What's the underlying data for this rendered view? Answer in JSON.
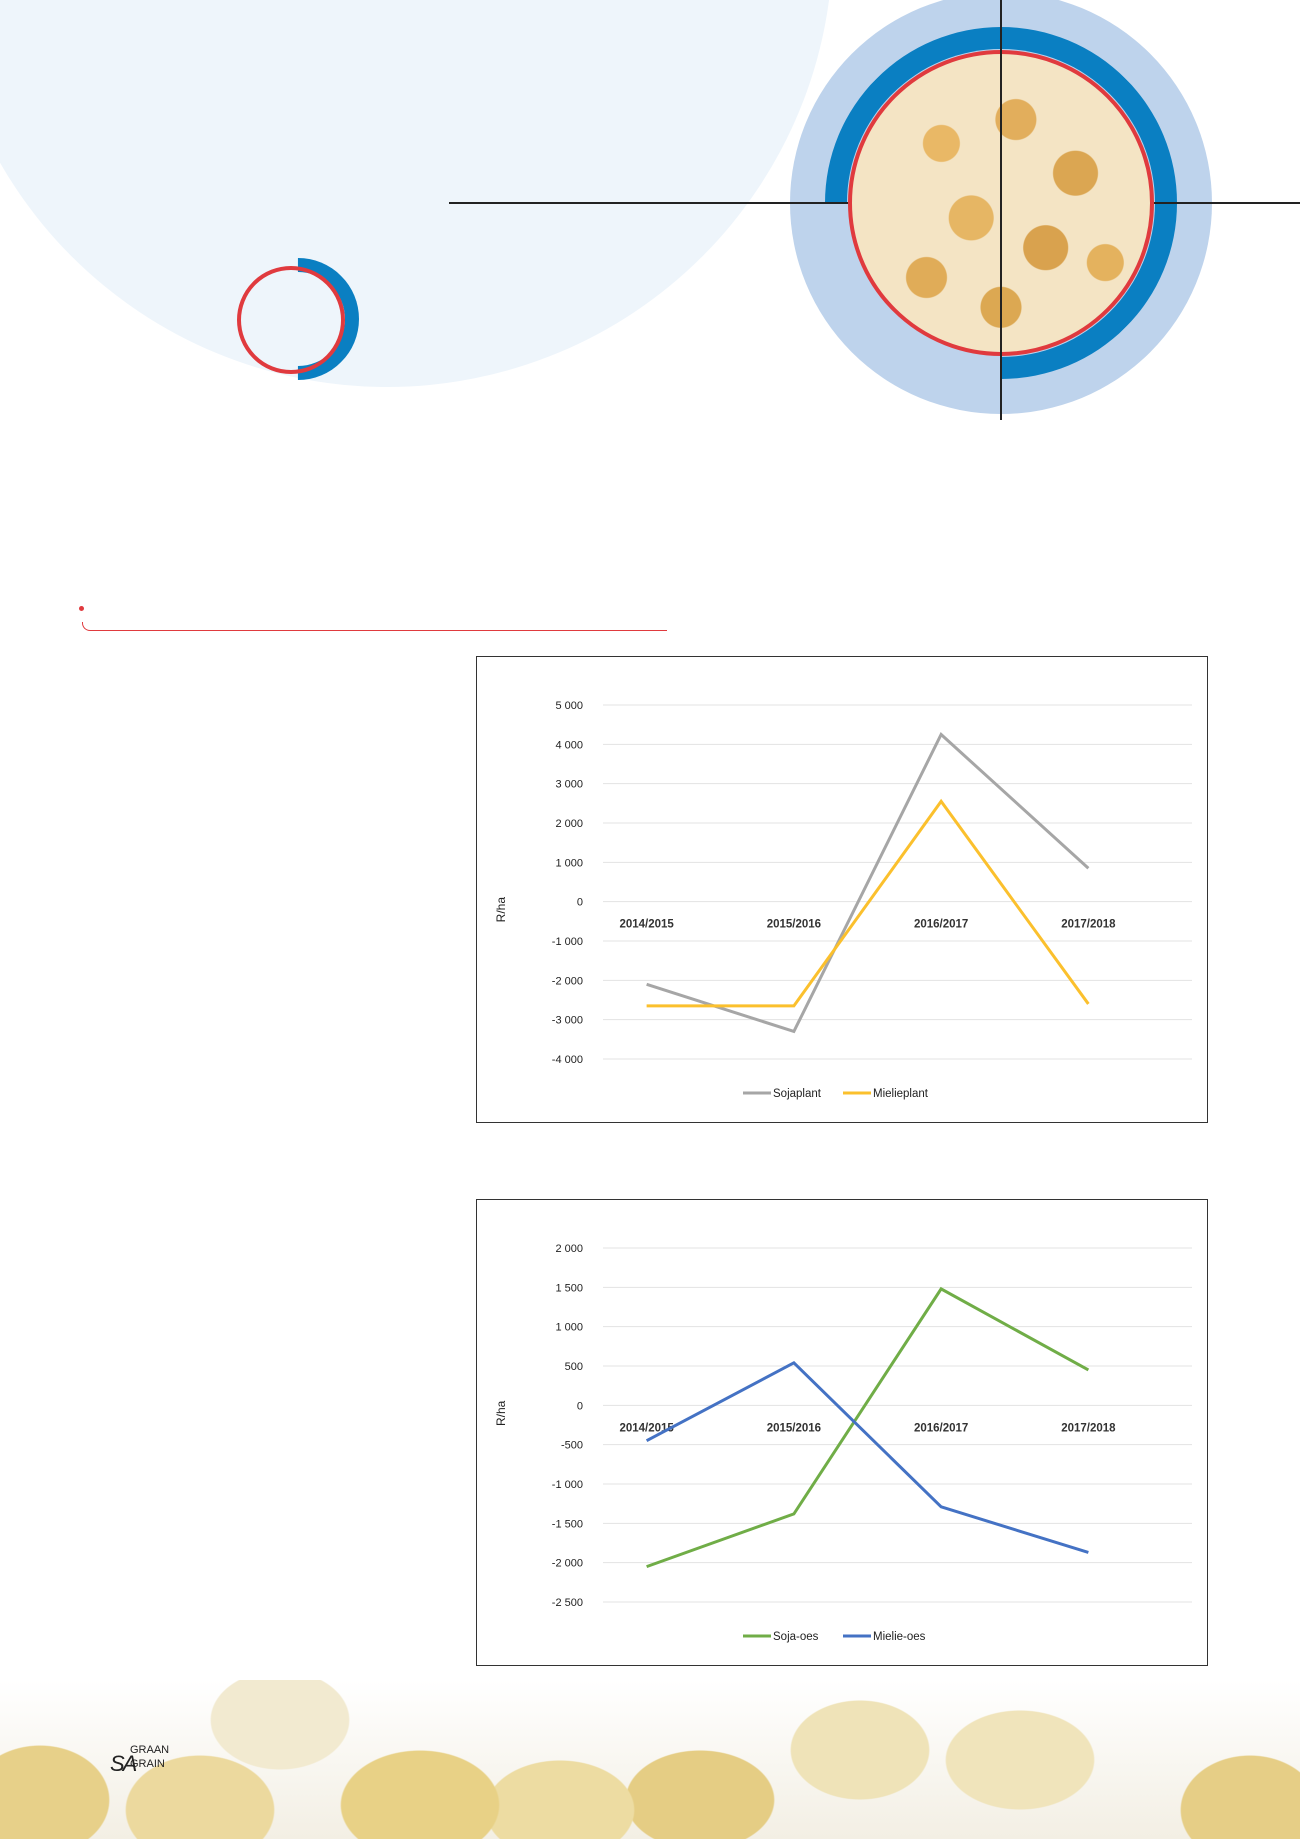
{
  "logo": {
    "sa": "SA",
    "graan": "GRAAN",
    "grain": "GRAIN"
  },
  "colors": {
    "accent_red": "#e03a3e",
    "brand_blue": "#0a7fc2"
  },
  "chart_data": [
    {
      "type": "line",
      "title": "",
      "xlabel": "",
      "ylabel": "R/ha",
      "categories": [
        "2014/2015",
        "2015/2016",
        "2016/2017",
        "2017/2018"
      ],
      "ylim": [
        -4000,
        5000
      ],
      "yticks": [
        5000,
        4000,
        3000,
        2000,
        1000,
        0,
        -1000,
        -2000,
        -3000,
        -4000
      ],
      "ytick_labels": [
        "5 000",
        "4 000",
        "3 000",
        "2 000",
        "1 000",
        "0",
        "-1 000",
        "-2 000",
        "-3 000",
        "-4 000"
      ],
      "grid": true,
      "legend_position": "bottom",
      "series": [
        {
          "name": "Sojaplant",
          "color": "#a6a6a6",
          "values": [
            -2100,
            -3300,
            4250,
            850
          ]
        },
        {
          "name": "Mielieplant",
          "color": "#fbc02d",
          "values": [
            -2650,
            -2650,
            2550,
            -2600
          ]
        }
      ]
    },
    {
      "type": "line",
      "title": "",
      "xlabel": "",
      "ylabel": "R/ha",
      "categories": [
        "2014/2015",
        "2015/2016",
        "2016/2017",
        "2017/2018"
      ],
      "ylim": [
        -2500,
        2000
      ],
      "yticks": [
        2000,
        1500,
        1000,
        500,
        0,
        -500,
        -1000,
        -1500,
        -2000,
        -2500
      ],
      "ytick_labels": [
        "2 000",
        "1 500",
        "1 000",
        "500",
        "0",
        "-500",
        "-1 000",
        "-1 500",
        "-2 000",
        "-2 500"
      ],
      "grid": true,
      "legend_position": "bottom",
      "series": [
        {
          "name": "Soja-oes",
          "color": "#70ad47",
          "values": [
            -2050,
            -1380,
            1480,
            450
          ]
        },
        {
          "name": "Mielie-oes",
          "color": "#4472c4",
          "values": [
            -450,
            540,
            -1290,
            -1870
          ]
        }
      ]
    }
  ]
}
